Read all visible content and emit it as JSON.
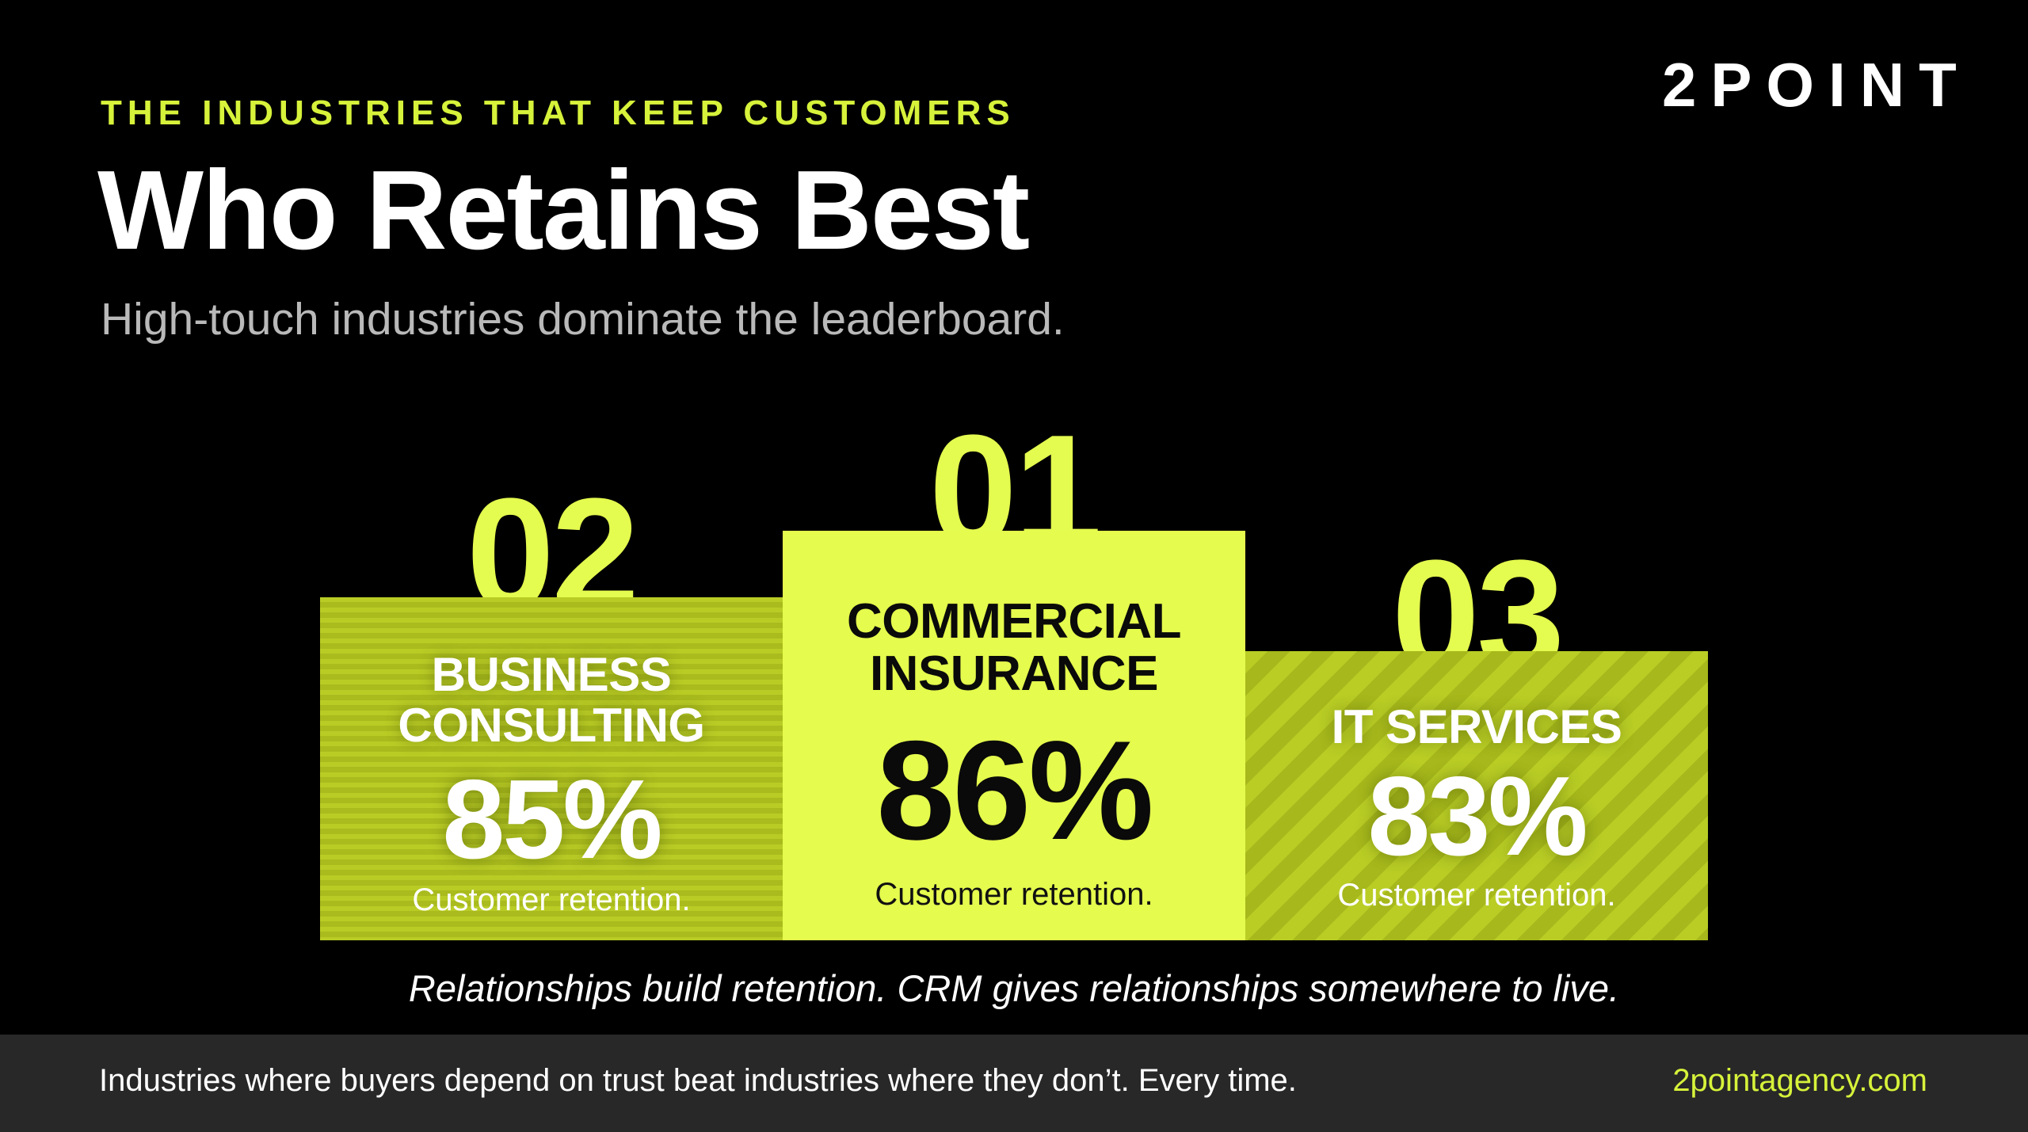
{
  "header": {
    "eyebrow": "THE INDUSTRIES THAT KEEP CUSTOMERS",
    "title": "Who Retains Best",
    "subtitle": "High-touch industries dominate the leaderboard.",
    "logo": "2POINT"
  },
  "podium": [
    {
      "rank": "02",
      "industry_line1": "BUSINESS",
      "industry_line2": "CONSULTING",
      "retention": "85%",
      "caption": "Customer retention."
    },
    {
      "rank": "01",
      "industry_line1": "COMMERCIAL",
      "industry_line2": "INSURANCE",
      "retention": "86%",
      "caption": "Customer retention."
    },
    {
      "rank": "03",
      "industry_line1": "IT SERVICES",
      "industry_line2": "",
      "retention": "83%",
      "caption": "Customer retention."
    }
  ],
  "tagline": "Relationships build retention. CRM gives relationships somewhere to live.",
  "footer": {
    "text": "Industries where buyers depend on trust beat industries where they don’t. Every time.",
    "url": "2pointagency.com"
  },
  "colors": {
    "accent": "#d7f23a",
    "first_place": "#e5fb4d",
    "background": "#000000",
    "footer_bg": "#282828"
  }
}
